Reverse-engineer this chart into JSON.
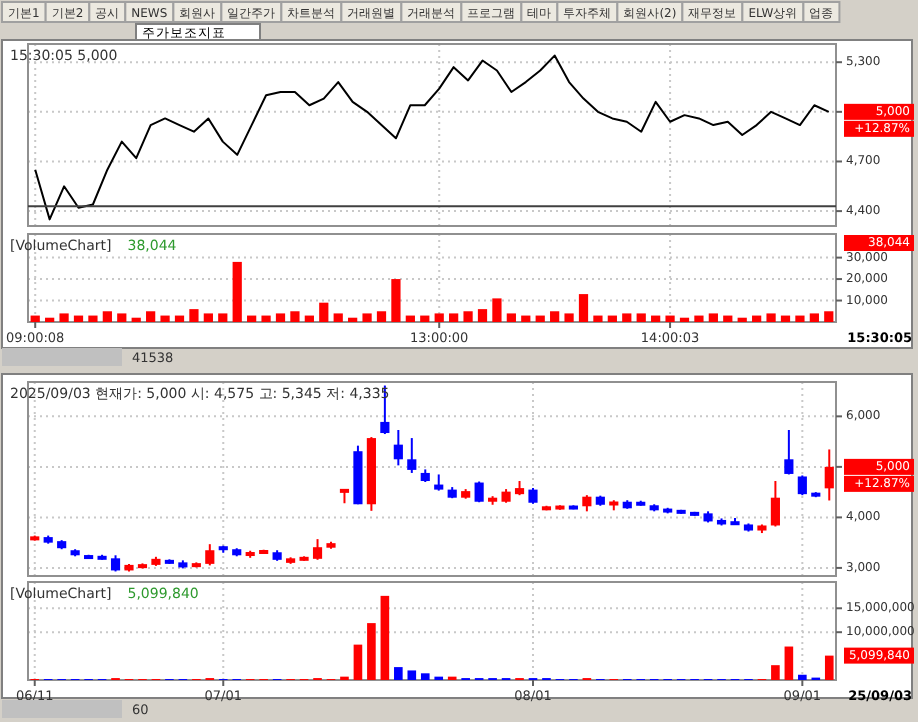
{
  "chart_data": [
    {
      "type": "other",
      "annotations": [
        "기본1",
        "기본2",
        "공시",
        "NEWS",
        "회원사",
        "일간주가",
        "차트분석",
        "거래원별",
        "거래분석",
        "프로그램",
        "테마",
        "투자주체",
        "회원사(2)",
        "재무정보",
        "ELW상위",
        "업종",
        "주가보조지표"
      ]
    },
    {
      "type": "line",
      "title": "15:30:05  5,000",
      "grid": true,
      "tick_labels": "y",
      "categories": [
        null,
        null,
        null,
        null,
        null,
        null,
        null,
        null,
        null,
        null,
        null,
        null,
        null,
        null,
        null,
        null,
        null,
        null,
        null,
        null,
        null,
        null,
        null,
        null,
        null,
        null,
        null,
        null,
        null,
        null,
        null,
        null,
        null,
        null,
        null,
        null,
        null,
        null,
        null,
        null,
        null,
        null,
        null,
        null,
        null,
        null,
        null,
        null,
        null,
        null,
        null,
        null,
        null,
        null,
        null,
        null
      ],
      "series": [
        {
          "color": "#000000",
          "values": [
            4650,
            4350,
            4550,
            4420,
            4440,
            4650,
            4820,
            4720,
            4920,
            4960,
            4920,
            4880,
            4960,
            4820,
            4740,
            4920,
            5100,
            5120,
            5120,
            5040,
            5080,
            5180,
            5060,
            5000,
            4920,
            4840,
            5040,
            5040,
            5140,
            5270,
            5190,
            5310,
            5250,
            5120,
            5180,
            5250,
            5340,
            5180,
            5080,
            5000,
            4960,
            4940,
            4880,
            5060,
            4940,
            4980,
            4960,
            4920,
            4940,
            4860,
            4920,
            5000,
            4960,
            4920,
            5040,
            5000
          ]
        }
      ],
      "ylim": [
        4310,
        5410
      ],
      "yticks": [
        {
          "value": 4400,
          "label": "4,400"
        },
        {
          "value": 4700,
          "label": "4,700"
        },
        {
          "value": 5000,
          "label": null
        },
        {
          "value": 5300,
          "label": "5,300"
        }
      ],
      "ref_lines": [
        {
          "axis": "y",
          "value": 4430,
          "color": "#404040"
        }
      ],
      "annotations": [
        "5,000",
        "+12.87%"
      ]
    },
    {
      "type": "bar",
      "title": "[VolumeChart]",
      "subtitle": "38,044",
      "grid": true,
      "categories": [
        "09:00:08",
        null,
        null,
        null,
        null,
        null,
        null,
        null,
        null,
        null,
        null,
        null,
        null,
        null,
        null,
        null,
        null,
        null,
        null,
        null,
        null,
        null,
        null,
        null,
        null,
        null,
        null,
        null,
        "13:00:00",
        null,
        null,
        null,
        null,
        null,
        null,
        null,
        null,
        null,
        null,
        null,
        null,
        null,
        null,
        null,
        "14:00:03",
        null,
        null,
        null,
        null,
        null,
        null,
        null,
        null,
        null,
        null,
        null
      ],
      "series": [
        {
          "color": "#ff0000",
          "values": [
            3000,
            2000,
            4000,
            3000,
            3000,
            5000,
            4000,
            2000,
            5000,
            3000,
            3000,
            6000,
            4000,
            4000,
            28000,
            3000,
            3000,
            4000,
            5000,
            3000,
            9000,
            4000,
            2000,
            4000,
            5000,
            20000,
            3000,
            3000,
            4000,
            4000,
            5000,
            6000,
            11000,
            4000,
            3000,
            3000,
            5000,
            4000,
            13000,
            3000,
            3000,
            4000,
            4000,
            3000,
            3000,
            2000,
            3000,
            4000,
            3000,
            2000,
            3000,
            4000,
            3000,
            3000,
            4000,
            5000
          ]
        }
      ],
      "ylim": [
        0,
        41000
      ],
      "yticks": [
        {
          "value": 10000,
          "label": "10,000"
        },
        {
          "value": 20000,
          "label": "20,000"
        },
        {
          "value": 30000,
          "label": "30,000"
        }
      ],
      "annotations": [
        "38,044",
        "15:30:05",
        "41538"
      ]
    },
    {
      "type": "candlestick",
      "title": "2025/09/03 현재가: 5,000 시: 4,575 고: 5,345 저: 4,335",
      "grid": true,
      "tick_labels": "y",
      "categories": [
        null,
        null,
        null,
        null,
        null,
        null,
        null,
        null,
        null,
        null,
        null,
        null,
        null,
        null,
        null,
        null,
        null,
        null,
        null,
        null,
        null,
        null,
        null,
        null,
        null,
        null,
        null,
        null,
        null,
        null,
        null,
        null,
        null,
        null,
        null,
        null,
        null,
        null,
        null,
        null,
        null,
        null,
        null,
        null,
        null,
        null,
        null,
        null,
        null,
        null,
        null,
        null,
        null,
        null,
        null,
        null,
        null,
        null,
        null,
        null
      ],
      "ohlc": [
        [
          3560,
          3640,
          3540,
          3610
        ],
        [
          3610,
          3640,
          3480,
          3500
        ],
        [
          3530,
          3550,
          3370,
          3390
        ],
        [
          3350,
          3370,
          3230,
          3250
        ],
        [
          3230,
          3260,
          3180,
          3200
        ],
        [
          3210,
          3260,
          3160,
          3190
        ],
        [
          3190,
          3250,
          2930,
          2950
        ],
        [
          2950,
          3080,
          2930,
          3060
        ],
        [
          3010,
          3090,
          2990,
          3060
        ],
        [
          3060,
          3220,
          3040,
          3180
        ],
        [
          3140,
          3170,
          3080,
          3100
        ],
        [
          3110,
          3150,
          2990,
          3010
        ],
        [
          3030,
          3110,
          3010,
          3080
        ],
        [
          3080,
          3470,
          3050,
          3350
        ],
        [
          3410,
          3440,
          3300,
          3370
        ],
        [
          3370,
          3390,
          3230,
          3250
        ],
        [
          3240,
          3340,
          3200,
          3310
        ],
        [
          3300,
          3360,
          3280,
          3330
        ],
        [
          3310,
          3350,
          3140,
          3160
        ],
        [
          3100,
          3210,
          3080,
          3190
        ],
        [
          3160,
          3230,
          3140,
          3200
        ],
        [
          3180,
          3570,
          3160,
          3410
        ],
        [
          3400,
          3520,
          3380,
          3490
        ],
        [
          4500,
          4560,
          4280,
          4550
        ],
        [
          5310,
          5420,
          4260,
          4260
        ],
        [
          4260,
          5590,
          4130,
          5570
        ],
        [
          5890,
          6610,
          5650,
          5670
        ],
        [
          5440,
          5730,
          5030,
          5150
        ],
        [
          5150,
          5570,
          4880,
          4940
        ],
        [
          4880,
          4950,
          4700,
          4720
        ],
        [
          4650,
          4850,
          4530,
          4550
        ],
        [
          4550,
          4600,
          4380,
          4390
        ],
        [
          4390,
          4560,
          4370,
          4520
        ],
        [
          4690,
          4710,
          4300,
          4310
        ],
        [
          4310,
          4420,
          4250,
          4390
        ],
        [
          4310,
          4560,
          4290,
          4510
        ],
        [
          4460,
          4720,
          4440,
          4580
        ],
        [
          4550,
          4580,
          4270,
          4290
        ],
        [
          4160,
          4230,
          4140,
          4200
        ],
        [
          4190,
          4240,
          4150,
          4200
        ],
        [
          4210,
          4240,
          4160,
          4180
        ],
        [
          4220,
          4440,
          4120,
          4410
        ],
        [
          4410,
          4430,
          4230,
          4250
        ],
        [
          4240,
          4340,
          4140,
          4310
        ],
        [
          4310,
          4340,
          4170,
          4180
        ],
        [
          4290,
          4330,
          4230,
          4250
        ],
        [
          4240,
          4260,
          4120,
          4140
        ],
        [
          4170,
          4190,
          4080,
          4100
        ],
        [
          4130,
          4150,
          4070,
          4090
        ],
        [
          4090,
          4110,
          4030,
          4050
        ],
        [
          4080,
          4120,
          3900,
          3920
        ],
        [
          3950,
          3980,
          3840,
          3860
        ],
        [
          3900,
          3990,
          3850,
          3870
        ],
        [
          3860,
          3880,
          3720,
          3740
        ],
        [
          3740,
          3860,
          3690,
          3840
        ],
        [
          3840,
          4720,
          3820,
          4390
        ],
        [
          5150,
          5730,
          4850,
          4860
        ],
        [
          4810,
          4830,
          4440,
          4460
        ],
        [
          4470,
          4500,
          4400,
          4430
        ],
        [
          4575,
          5345,
          4335,
          5000
        ]
      ],
      "colors": [
        "#ff0000",
        "#0000ff",
        "#0000ff",
        "#0000ff",
        "#0000ff",
        "#0000ff",
        "#0000ff",
        "#ff0000",
        "#ff0000",
        "#ff0000",
        "#0000ff",
        "#0000ff",
        "#ff0000",
        "#ff0000",
        "#0000ff",
        "#0000ff",
        "#ff0000",
        "#ff0000",
        "#0000ff",
        "#ff0000",
        "#ff0000",
        "#ff0000",
        "#ff0000",
        "#ff0000",
        "#0000ff",
        "#ff0000",
        "#0000ff",
        "#0000ff",
        "#0000ff",
        "#0000ff",
        "#0000ff",
        "#0000ff",
        "#ff0000",
        "#0000ff",
        "#ff0000",
        "#ff0000",
        "#ff0000",
        "#0000ff",
        "#ff0000",
        "#ff0000",
        "#0000ff",
        "#ff0000",
        "#0000ff",
        "#ff0000",
        "#0000ff",
        "#0000ff",
        "#0000ff",
        "#0000ff",
        "#0000ff",
        "#0000ff",
        "#0000ff",
        "#0000ff",
        "#0000ff",
        "#0000ff",
        "#ff0000",
        "#ff0000",
        "#0000ff",
        "#0000ff",
        "#0000ff",
        "#ff0000"
      ],
      "ylim": [
        2840,
        6680
      ],
      "yticks": [
        {
          "value": 3000,
          "label": "3,000"
        },
        {
          "value": 4000,
          "label": "4,000"
        },
        {
          "value": 5000,
          "label": null
        },
        {
          "value": 6000,
          "label": "6,000"
        }
      ],
      "annotations": [
        "5,000",
        "+12.87%"
      ]
    },
    {
      "type": "bar",
      "title": "[VolumeChart]",
      "subtitle": "5,099,840",
      "grid": true,
      "categories": [
        "06/11",
        null,
        null,
        null,
        null,
        null,
        null,
        null,
        null,
        null,
        null,
        null,
        null,
        null,
        "07/01",
        null,
        null,
        null,
        null,
        null,
        null,
        null,
        null,
        null,
        null,
        null,
        null,
        null,
        null,
        null,
        null,
        null,
        null,
        null,
        null,
        null,
        null,
        "08/01",
        null,
        null,
        null,
        null,
        null,
        null,
        null,
        null,
        null,
        null,
        null,
        null,
        null,
        null,
        null,
        null,
        null,
        null,
        null,
        "09/01",
        null,
        null
      ],
      "values": [
        200000,
        200000,
        200000,
        200000,
        200000,
        200000,
        400000,
        200000,
        200000,
        200000,
        200000,
        200000,
        200000,
        400000,
        200000,
        200000,
        200000,
        200000,
        200000,
        200000,
        200000,
        400000,
        200000,
        700000,
        7400000,
        11900000,
        17600000,
        2700000,
        2000000,
        1400000,
        700000,
        700000,
        400000,
        400000,
        400000,
        400000,
        400000,
        400000,
        400000,
        200000,
        200000,
        400000,
        200000,
        200000,
        200000,
        200000,
        200000,
        200000,
        200000,
        200000,
        200000,
        200000,
        200000,
        200000,
        200000,
        3100000,
        7000000,
        1100000,
        500000,
        5099840
      ],
      "colors": [
        "#ff0000",
        "#0000ff",
        "#0000ff",
        "#0000ff",
        "#0000ff",
        "#0000ff",
        "#ff0000",
        "#ff0000",
        "#ff0000",
        "#ff0000",
        "#0000ff",
        "#0000ff",
        "#ff0000",
        "#ff0000",
        "#0000ff",
        "#0000ff",
        "#ff0000",
        "#ff0000",
        "#0000ff",
        "#ff0000",
        "#ff0000",
        "#ff0000",
        "#ff0000",
        "#ff0000",
        "#ff0000",
        "#ff0000",
        "#ff0000",
        "#0000ff",
        "#0000ff",
        "#0000ff",
        "#0000ff",
        "#ff0000",
        "#0000ff",
        "#0000ff",
        "#0000ff",
        "#0000ff",
        "#ff0000",
        "#0000ff",
        "#0000ff",
        "#0000ff",
        "#0000ff",
        "#ff0000",
        "#0000ff",
        "#ff0000",
        "#0000ff",
        "#0000ff",
        "#0000ff",
        "#0000ff",
        "#0000ff",
        "#0000ff",
        "#0000ff",
        "#0000ff",
        "#0000ff",
        "#0000ff",
        "#ff0000",
        "#ff0000",
        "#ff0000",
        "#0000ff",
        "#0000ff",
        "#ff0000"
      ],
      "ylim": [
        0,
        20500000
      ],
      "yticks": [
        {
          "value": 10000000,
          "label": "10,000,000"
        },
        {
          "value": 15000000,
          "label": "15,000,000"
        }
      ],
      "annotations": [
        "5,099,840",
        "25/09/03",
        "60"
      ]
    }
  ]
}
